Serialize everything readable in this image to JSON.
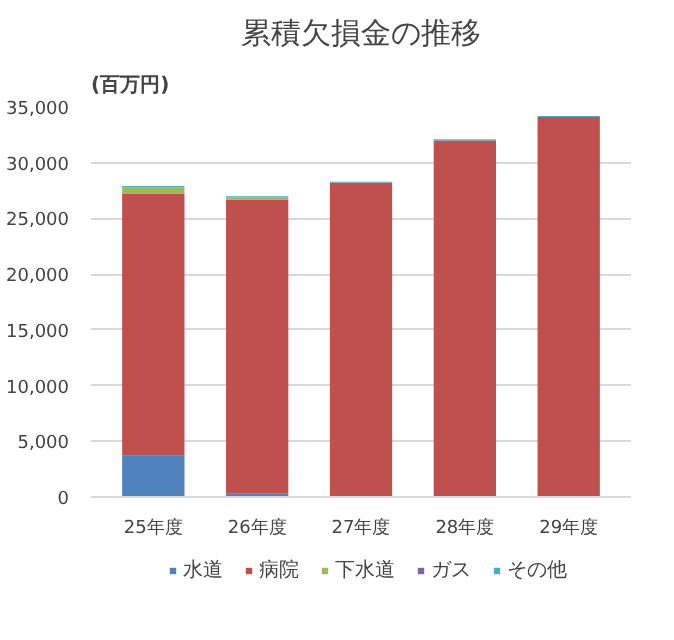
{
  "chart_data": {
    "type": "bar",
    "title": "累積欠損金の推移",
    "ylabel": "(百万円)",
    "stacked": true,
    "categories": [
      "25年度",
      "26年度",
      "27年度",
      "28年度",
      "29年度"
    ],
    "series": [
      {
        "name": "水道",
        "color": "#4f81bd",
        "values": [
          3700,
          300,
          100,
          0,
          0
        ]
      },
      {
        "name": "病院",
        "color": "#c0504d",
        "values": [
          23500,
          26400,
          28100,
          32000,
          34100
        ]
      },
      {
        "name": "下水道",
        "color": "#9bbb59",
        "values": [
          600,
          200,
          0,
          0,
          0
        ]
      },
      {
        "name": "ガス",
        "color": "#8064a2",
        "values": [
          0,
          0,
          0,
          0,
          0
        ]
      },
      {
        "name": "その他",
        "color": "#4bacc6",
        "values": [
          100,
          100,
          100,
          100,
          100
        ]
      }
    ],
    "ylim": [
      0,
      35000
    ],
    "yticks": [
      {
        "value": 0,
        "label": "0"
      },
      {
        "value": 5000,
        "label": "5,000"
      },
      {
        "value": 10000,
        "label": "10,000"
      },
      {
        "value": 15000,
        "label": "15,000"
      },
      {
        "value": 20000,
        "label": "20,000"
      },
      {
        "value": 25000,
        "label": "25,000"
      },
      {
        "value": 30000,
        "label": "30,000"
      },
      {
        "value": 35000,
        "label": "35,000"
      }
    ],
    "grid": "y",
    "legend": "bottom"
  }
}
